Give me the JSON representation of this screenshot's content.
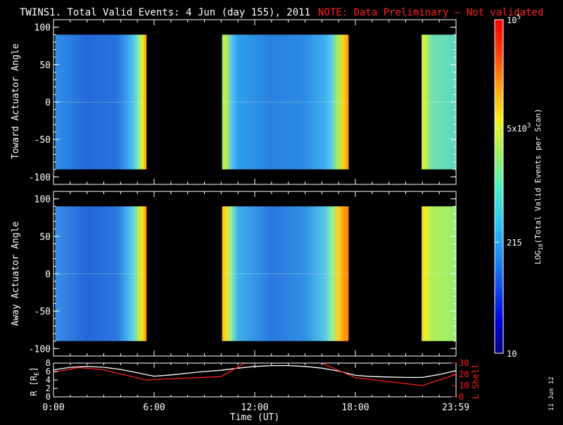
{
  "title": {
    "main": "TWINS1. Total Valid Events:  4 Jun (day 155), 2011",
    "note": "NOTE: Data Preliminary – Not validated",
    "note_color": "#ff2020"
  },
  "date_stamp": "11 Jun 12",
  "chart_data": [
    {
      "type": "heatmap",
      "name": "toward",
      "ylabel": "Toward Actuator Angle",
      "ylim": [
        -110,
        110
      ],
      "yticks": [
        "100",
        "50",
        "0",
        "-50",
        "-100"
      ],
      "angle_range": [
        -90,
        90
      ],
      "time_segments_h": [
        [
          0.1,
          5.55
        ],
        [
          10.05,
          17.6
        ],
        [
          21.95,
          24.0
        ]
      ],
      "level_profile": [
        [
          0.1,
          "#3090e8"
        ],
        [
          2.0,
          "#2468d8"
        ],
        [
          3.8,
          "#2874dc"
        ],
        [
          4.3,
          "#3a96ec"
        ],
        [
          4.8,
          "#50c8f0"
        ],
        [
          5.1,
          "#90f0a0"
        ],
        [
          5.3,
          "#e8f020"
        ],
        [
          5.55,
          "#ff9a10"
        ],
        [
          10.05,
          "#a0f078"
        ],
        [
          10.3,
          "#c0f040"
        ],
        [
          10.6,
          "#58c8f0"
        ],
        [
          11.0,
          "#30a0ec"
        ],
        [
          13.0,
          "#2880e0"
        ],
        [
          15.0,
          "#2c8ce4"
        ],
        [
          16.2,
          "#40b0f0"
        ],
        [
          16.6,
          "#58d0e8"
        ],
        [
          17.0,
          "#b0f050"
        ],
        [
          17.3,
          "#ffd020"
        ],
        [
          17.6,
          "#ff9010"
        ],
        [
          21.95,
          "#e8f030"
        ],
        [
          22.2,
          "#b8f058"
        ],
        [
          22.6,
          "#70e0b0"
        ],
        [
          24.0,
          "#60d8c0"
        ]
      ]
    },
    {
      "type": "heatmap",
      "name": "away",
      "ylabel": "Away Actuator Angle",
      "ylim": [
        -110,
        110
      ],
      "yticks": [
        "100",
        "50",
        "0",
        "-50",
        "-100"
      ],
      "angle_range": [
        -90,
        90
      ],
      "time_segments_h": [
        [
          0.1,
          5.55
        ],
        [
          10.05,
          17.6
        ],
        [
          21.95,
          24.0
        ]
      ],
      "level_profile": [
        [
          0.1,
          "#3a90e8"
        ],
        [
          2.0,
          "#2466d8"
        ],
        [
          3.8,
          "#2a78de"
        ],
        [
          4.3,
          "#40a8ee"
        ],
        [
          4.8,
          "#60d8e0"
        ],
        [
          5.1,
          "#c0f040"
        ],
        [
          5.3,
          "#ffe020"
        ],
        [
          5.55,
          "#ff9010"
        ],
        [
          10.05,
          "#ffb010"
        ],
        [
          10.3,
          "#ffe020"
        ],
        [
          10.6,
          "#90f0a0"
        ],
        [
          11.0,
          "#40b0ec"
        ],
        [
          13.0,
          "#2a78e0"
        ],
        [
          15.0,
          "#3090e4"
        ],
        [
          16.2,
          "#58c8e8"
        ],
        [
          16.6,
          "#90f0a0"
        ],
        [
          17.0,
          "#ffd020"
        ],
        [
          17.3,
          "#ffa010"
        ],
        [
          17.6,
          "#ff8010"
        ],
        [
          21.95,
          "#ffd020"
        ],
        [
          22.2,
          "#e8f030"
        ],
        [
          22.6,
          "#b0f058"
        ],
        [
          24.0,
          "#98f070"
        ]
      ]
    },
    {
      "type": "line",
      "name": "ephemeris",
      "xlabel": "Time (UT)",
      "xlim": [
        0,
        24
      ],
      "xticks": [
        "0:00",
        "6:00",
        "12:00",
        "18:00",
        "23:59"
      ],
      "ylabel_left": "R [R",
      "ylabel_left_sub": "E",
      "ylabel_left_close": "]",
      "ylim_left": [
        0,
        8
      ],
      "yticks_left": [
        "8",
        "6",
        "4",
        "2",
        "0"
      ],
      "ylabel_right": "L Shell",
      "ylim_right": [
        0,
        30
      ],
      "yticks_right": [
        "30",
        "20",
        "10",
        "0"
      ],
      "series": [
        {
          "color": "#ffffff",
          "axis": "left",
          "x": [
            0,
            1,
            2,
            3,
            4,
            5,
            6,
            7,
            8,
            9,
            10,
            11,
            12,
            13,
            14,
            15,
            16,
            17,
            18,
            19,
            20,
            21,
            22,
            23,
            24
          ],
          "y": [
            6.4,
            7.0,
            7.2,
            7.0,
            6.5,
            5.7,
            4.9,
            5.2,
            5.6,
            6.0,
            6.3,
            6.8,
            7.2,
            7.4,
            7.4,
            7.2,
            6.8,
            6.1,
            5.1,
            4.8,
            4.7,
            4.6,
            4.6,
            5.3,
            6.2
          ]
        },
        {
          "color": "#ff2020",
          "axis": "right",
          "x": [
            0,
            1.5,
            3,
            5.5,
            10,
            12,
            12.5,
            15.5,
            16,
            18,
            22,
            24
          ],
          "y": [
            22,
            26,
            24,
            15,
            18,
            35,
            35,
            35,
            30,
            17,
            10,
            20
          ]
        }
      ]
    }
  ],
  "colorbar": {
    "label": "LOG",
    "label_sub": "10",
    "label_rest": "(Total Valid  Events per Scan)",
    "scale": "log",
    "range": [
      10,
      100000
    ],
    "stops": [
      "#000080",
      "#0000e0",
      "#1050f0",
      "#2090f0",
      "#30c8f0",
      "#50f0c0",
      "#a0f060",
      "#f0f020",
      "#ffa010",
      "#ff4010",
      "#ff0000"
    ],
    "ticks": [
      {
        "value": 100000,
        "label": "10",
        "sup": "5"
      },
      {
        "value": 5000,
        "label": "5x10",
        "sup": "3"
      },
      {
        "value": 215,
        "label": "215",
        "sup": ""
      },
      {
        "value": 10,
        "label": "10",
        "sup": ""
      }
    ]
  }
}
